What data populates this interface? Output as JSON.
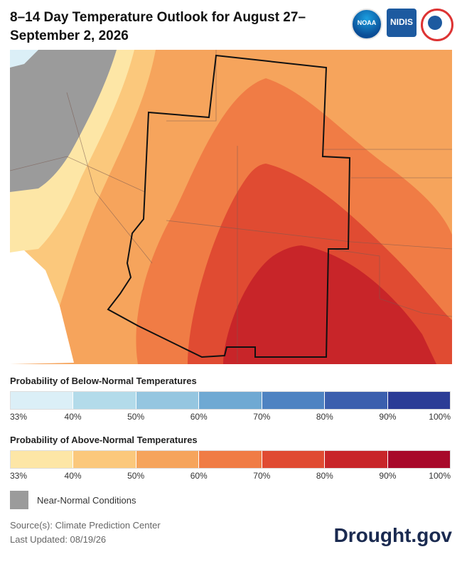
{
  "title": "8–14 Day Temperature Outlook for August 27–September 2, 2026",
  "logos": [
    {
      "name": "noaa-logo",
      "text": "NOAA"
    },
    {
      "name": "nidis-logo",
      "text": "NIDIS"
    },
    {
      "name": "nws-logo",
      "text": ""
    }
  ],
  "legend_below": {
    "title": "Probability of Below-Normal Temperatures",
    "colors": [
      "#dbeff7",
      "#b3dbea",
      "#95c6e0",
      "#6fa9d3",
      "#4e83c2",
      "#3b5fae",
      "#2b3c96"
    ],
    "ticks": [
      "33%",
      "40%",
      "50%",
      "60%",
      "70%",
      "80%",
      "90%",
      "100%"
    ]
  },
  "legend_above": {
    "title": "Probability of Above-Normal Temperatures",
    "colors": [
      "#fde6a6",
      "#fbc87c",
      "#f6a45c",
      "#f07c45",
      "#e04b32",
      "#c82529",
      "#a8092a"
    ],
    "ticks": [
      "33%",
      "40%",
      "50%",
      "60%",
      "70%",
      "80%",
      "90%",
      "100%"
    ]
  },
  "near_normal": {
    "label": "Near-Normal Conditions",
    "color": "#9b9b9b"
  },
  "source": "Source(s): Climate Prediction Center",
  "last_updated": "Last Updated: 08/19/26",
  "brand": "Drought.gov"
}
